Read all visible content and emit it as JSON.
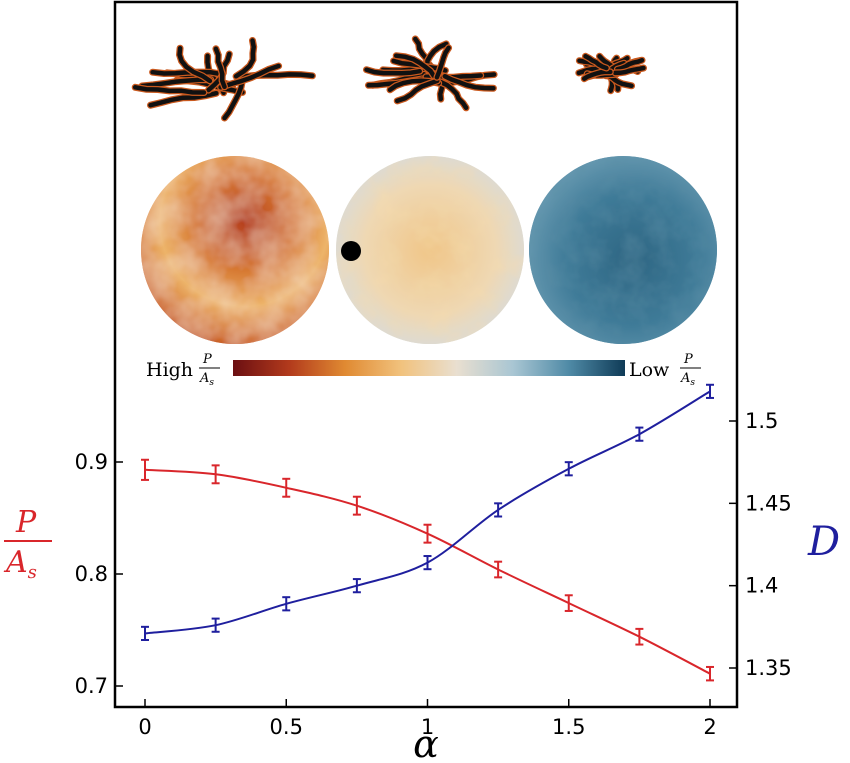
{
  "colorbar": {
    "high_label": "High",
    "low_label": "Low",
    "frac_num": "P",
    "frac_den": "A",
    "frac_den_sub": "s",
    "gradient": [
      "#6b0f12",
      "#b23a1c",
      "#e08a32",
      "#f1c27d",
      "#e9dfd0",
      "#a9c6d3",
      "#4f8aa6",
      "#0f3b57"
    ]
  },
  "colors": {
    "left_series": "#d9262b",
    "right_series": "#1f1f9e",
    "axis": "#000000",
    "frame": "#000000",
    "marker_dot": "#000000"
  },
  "insets": {
    "labels": [],
    "sphere_count": 3,
    "aggregate_count": 3
  },
  "chart_data": {
    "type": "line",
    "title": "",
    "xlabel": "α",
    "xlim": [
      -0.1,
      2.1
    ],
    "x_ticks": [
      0,
      0.5,
      1,
      1.5,
      2
    ],
    "x_tick_labels": [
      "0",
      "0.5",
      "1",
      "1.5",
      "2"
    ],
    "left_axis": {
      "label_num": "P",
      "label_den": "A",
      "label_den_sub": "s",
      "ylim": [
        0.69,
        0.955
      ],
      "ticks": [
        0.7,
        0.8,
        0.9
      ],
      "tick_labels": [
        "0.7",
        "0.8",
        "0.9"
      ]
    },
    "right_axis": {
      "label": "D",
      "ylim": [
        1.338,
        1.528
      ],
      "ticks": [
        1.35,
        1.4,
        1.45,
        1.5
      ],
      "tick_labels": [
        "1.35",
        "1.4",
        "1.45",
        "1.5"
      ]
    },
    "x": [
      0,
      0.25,
      0.5,
      0.75,
      1,
      1.25,
      1.5,
      1.75,
      2
    ],
    "series": [
      {
        "axis": "left",
        "color": "#d9262b",
        "values": [
          0.893,
          0.889,
          0.877,
          0.861,
          0.836,
          0.804,
          0.774,
          0.744,
          0.711
        ],
        "errors": [
          0.009,
          0.008,
          0.008,
          0.008,
          0.008,
          0.007,
          0.007,
          0.007,
          0.006
        ]
      },
      {
        "axis": "right",
        "color": "#1f1f9e",
        "values": [
          1.371,
          1.376,
          1.389,
          1.4,
          1.414,
          1.446,
          1.471,
          1.492,
          1.518
        ],
        "errors": [
          0.004,
          0.004,
          0.004,
          0.004,
          0.004,
          0.004,
          0.004,
          0.004,
          0.004
        ]
      }
    ]
  }
}
